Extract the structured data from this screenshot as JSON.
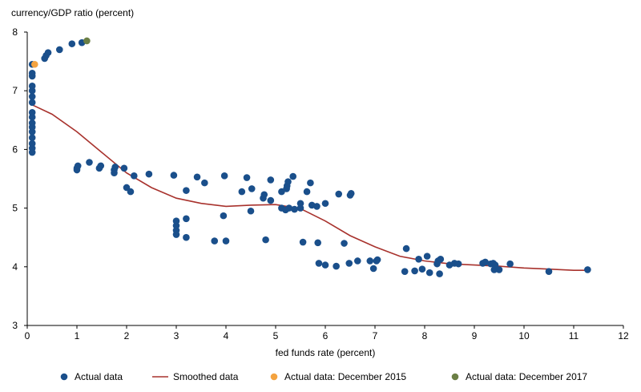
{
  "colors": {
    "actual": "#1a4f8b",
    "smoothed": "#a8322d",
    "dec2015": "#f4a340",
    "dec2017": "#6b7f45"
  },
  "chart_data": {
    "type": "scatter",
    "ylabel": "currency/GDP ratio (percent)",
    "xlabel": "fed funds rate (percent)",
    "xlim": [
      0,
      12
    ],
    "ylim": [
      3,
      8
    ],
    "xticks": [
      0,
      1,
      2,
      3,
      4,
      5,
      6,
      7,
      8,
      9,
      10,
      11,
      12
    ],
    "yticks": [
      3,
      4,
      5,
      6,
      7,
      8
    ],
    "grid": false,
    "legend": {
      "position": "bottom",
      "items": [
        {
          "label": "Actual data",
          "kind": "dot",
          "color_key": "actual"
        },
        {
          "label": "Smoothed data",
          "kind": "line",
          "color_key": "smoothed"
        },
        {
          "label": "Actual data: December 2015",
          "kind": "dot",
          "color_key": "dec2015"
        },
        {
          "label": "Actual data: December 2017",
          "kind": "dot",
          "color_key": "dec2017"
        }
      ]
    },
    "series": [
      {
        "name": "Actual data",
        "color_key": "actual",
        "points": [
          [
            0.1,
            5.95
          ],
          [
            0.1,
            6.02
          ],
          [
            0.1,
            6.1
          ],
          [
            0.1,
            6.2
          ],
          [
            0.1,
            6.3
          ],
          [
            0.1,
            6.38
          ],
          [
            0.1,
            6.45
          ],
          [
            0.1,
            6.55
          ],
          [
            0.1,
            6.63
          ],
          [
            0.1,
            6.8
          ],
          [
            0.1,
            6.9
          ],
          [
            0.1,
            7.0
          ],
          [
            0.1,
            7.08
          ],
          [
            0.1,
            7.25
          ],
          [
            0.1,
            7.3
          ],
          [
            0.1,
            7.45
          ],
          [
            0.35,
            7.55
          ],
          [
            0.38,
            7.6
          ],
          [
            0.42,
            7.65
          ],
          [
            0.65,
            7.7
          ],
          [
            0.9,
            7.8
          ],
          [
            1.1,
            7.82
          ],
          [
            1.0,
            5.65
          ],
          [
            1.0,
            5.68
          ],
          [
            1.02,
            5.72
          ],
          [
            1.25,
            5.78
          ],
          [
            1.45,
            5.68
          ],
          [
            1.48,
            5.72
          ],
          [
            1.75,
            5.6
          ],
          [
            1.75,
            5.65
          ],
          [
            1.77,
            5.7
          ],
          [
            1.95,
            5.68
          ],
          [
            2.0,
            5.35
          ],
          [
            2.08,
            5.28
          ],
          [
            2.15,
            5.55
          ],
          [
            2.45,
            5.58
          ],
          [
            2.95,
            5.56
          ],
          [
            3.0,
            4.55
          ],
          [
            3.0,
            4.62
          ],
          [
            3.0,
            4.7
          ],
          [
            3.0,
            4.78
          ],
          [
            3.2,
            4.5
          ],
          [
            3.2,
            4.82
          ],
          [
            3.2,
            5.3
          ],
          [
            3.42,
            5.53
          ],
          [
            3.57,
            5.43
          ],
          [
            3.77,
            4.44
          ],
          [
            3.95,
            4.87
          ],
          [
            3.97,
            5.55
          ],
          [
            4.0,
            4.44
          ],
          [
            4.32,
            5.28
          ],
          [
            4.42,
            5.52
          ],
          [
            4.5,
            4.95
          ],
          [
            4.52,
            5.33
          ],
          [
            4.75,
            5.17
          ],
          [
            4.77,
            5.23
          ],
          [
            4.8,
            4.46
          ],
          [
            4.9,
            5.48
          ],
          [
            4.9,
            5.13
          ],
          [
            5.12,
            5.28
          ],
          [
            5.12,
            5.0
          ],
          [
            5.2,
            4.97
          ],
          [
            5.22,
            5.33
          ],
          [
            5.23,
            5.38
          ],
          [
            5.25,
            5.45
          ],
          [
            5.27,
            5.0
          ],
          [
            5.35,
            5.54
          ],
          [
            5.38,
            4.98
          ],
          [
            5.5,
            5.0
          ],
          [
            5.5,
            5.08
          ],
          [
            5.55,
            4.42
          ],
          [
            5.63,
            5.28
          ],
          [
            5.7,
            5.43
          ],
          [
            5.73,
            5.05
          ],
          [
            5.83,
            5.03
          ],
          [
            5.85,
            4.41
          ],
          [
            5.87,
            4.06
          ],
          [
            6.0,
            4.03
          ],
          [
            6.0,
            5.08
          ],
          [
            6.22,
            4.01
          ],
          [
            6.27,
            5.24
          ],
          [
            6.38,
            4.4
          ],
          [
            6.48,
            4.06
          ],
          [
            6.5,
            5.22
          ],
          [
            6.52,
            5.25
          ],
          [
            6.65,
            4.1
          ],
          [
            6.9,
            4.1
          ],
          [
            6.97,
            3.97
          ],
          [
            7.03,
            4.1
          ],
          [
            7.05,
            4.12
          ],
          [
            7.6,
            3.92
          ],
          [
            7.63,
            4.31
          ],
          [
            7.8,
            3.93
          ],
          [
            7.88,
            4.13
          ],
          [
            7.95,
            3.96
          ],
          [
            8.05,
            4.18
          ],
          [
            8.1,
            3.9
          ],
          [
            8.25,
            4.05
          ],
          [
            8.27,
            4.1
          ],
          [
            8.3,
            3.88
          ],
          [
            8.32,
            4.13
          ],
          [
            8.5,
            4.03
          ],
          [
            8.6,
            4.06
          ],
          [
            8.68,
            4.05
          ],
          [
            9.17,
            4.06
          ],
          [
            9.22,
            4.08
          ],
          [
            9.33,
            4.05
          ],
          [
            9.38,
            4.06
          ],
          [
            9.4,
            3.95
          ],
          [
            9.42,
            4.03
          ],
          [
            9.5,
            3.95
          ],
          [
            9.72,
            4.05
          ],
          [
            10.5,
            3.92
          ],
          [
            11.28,
            3.95
          ]
        ]
      },
      {
        "name": "Smoothed data",
        "color_key": "smoothed",
        "points": [
          [
            0.1,
            6.76
          ],
          [
            0.5,
            6.6
          ],
          [
            1.0,
            6.3
          ],
          [
            1.5,
            5.95
          ],
          [
            2.0,
            5.6
          ],
          [
            2.5,
            5.35
          ],
          [
            3.0,
            5.17
          ],
          [
            3.5,
            5.08
          ],
          [
            4.0,
            5.03
          ],
          [
            4.5,
            5.05
          ],
          [
            5.0,
            5.06
          ],
          [
            5.5,
            4.99
          ],
          [
            6.0,
            4.78
          ],
          [
            6.5,
            4.53
          ],
          [
            7.0,
            4.34
          ],
          [
            7.5,
            4.18
          ],
          [
            8.0,
            4.1
          ],
          [
            8.5,
            4.05
          ],
          [
            9.0,
            4.03
          ],
          [
            9.5,
            4.01
          ],
          [
            10.0,
            3.98
          ],
          [
            10.5,
            3.96
          ],
          [
            11.0,
            3.94
          ],
          [
            11.28,
            3.94
          ]
        ]
      },
      {
        "name": "Actual data: December 2015",
        "color_key": "dec2015",
        "points": [
          [
            0.15,
            7.45
          ]
        ]
      },
      {
        "name": "Actual data: December 2017",
        "color_key": "dec2017",
        "points": [
          [
            1.2,
            7.85
          ]
        ]
      }
    ]
  }
}
